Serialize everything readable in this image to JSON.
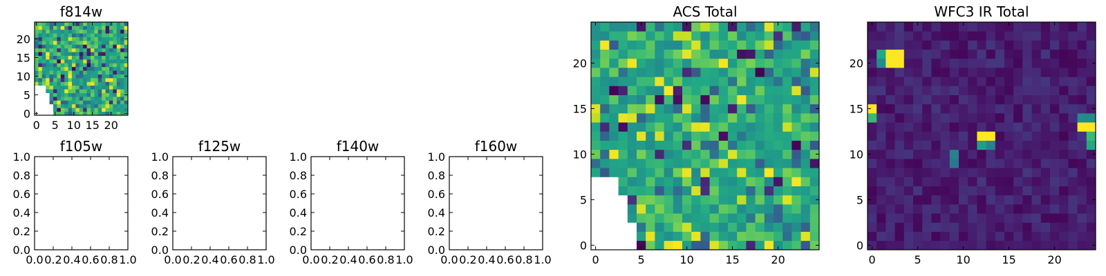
{
  "chart_data": [
    {
      "id": "f814w",
      "type": "heatmap",
      "title": "f814w",
      "xlabel": "",
      "ylabel": "",
      "xlim": [
        -0.5,
        24.5
      ],
      "ylim": [
        -0.5,
        24.5
      ],
      "xticks": [
        0,
        5,
        10,
        15,
        20
      ],
      "xtick_labels": [
        "0",
        "5",
        "10",
        "15",
        "20"
      ],
      "yticks": [
        0,
        5,
        10,
        15,
        20
      ],
      "ytick_labels": [
        "0",
        "5",
        "10",
        "15",
        "20"
      ],
      "grid": false,
      "colormap": "viridis",
      "value_range": [
        0,
        1
      ],
      "empty_region": "lower-left corner (no data)",
      "values": "25×25 pixel map (pixel-level detail not recoverable from the image)"
    },
    {
      "id": "f105w",
      "type": "scatter",
      "title": "f105w",
      "xlabel": "",
      "ylabel": "",
      "xlim": [
        0.0,
        1.0
      ],
      "ylim": [
        0.0,
        1.0
      ],
      "xticks": [
        0.0,
        0.2,
        0.4,
        0.6,
        0.8,
        1.0
      ],
      "xtick_labels": [
        "0.0",
        "0.2",
        "0.4",
        "0.6",
        "0.8",
        "1.0"
      ],
      "yticks": [
        0.0,
        0.2,
        0.4,
        0.6,
        0.8,
        1.0
      ],
      "ytick_labels": [
        "0.0",
        "0.2",
        "0.4",
        "0.6",
        "0.8",
        "1.0"
      ],
      "grid": false,
      "series": []
    },
    {
      "id": "f125w",
      "type": "scatter",
      "title": "f125w",
      "xlabel": "",
      "ylabel": "",
      "xlim": [
        0.0,
        1.0
      ],
      "ylim": [
        0.0,
        1.0
      ],
      "xticks": [
        0.0,
        0.2,
        0.4,
        0.6,
        0.8,
        1.0
      ],
      "xtick_labels": [
        "0.0",
        "0.2",
        "0.4",
        "0.6",
        "0.8",
        "1.0"
      ],
      "yticks": [
        0.0,
        0.2,
        0.4,
        0.6,
        0.8,
        1.0
      ],
      "ytick_labels": [
        "0.0",
        "0.2",
        "0.4",
        "0.6",
        "0.8",
        "1.0"
      ],
      "grid": false,
      "series": []
    },
    {
      "id": "f140w",
      "type": "scatter",
      "title": "f140w",
      "xlabel": "",
      "ylabel": "",
      "xlim": [
        0.0,
        1.0
      ],
      "ylim": [
        0.0,
        1.0
      ],
      "xticks": [
        0.0,
        0.2,
        0.4,
        0.6,
        0.8,
        1.0
      ],
      "xtick_labels": [
        "0.0",
        "0.2",
        "0.4",
        "0.6",
        "0.8",
        "1.0"
      ],
      "yticks": [
        0.0,
        0.2,
        0.4,
        0.6,
        0.8,
        1.0
      ],
      "ytick_labels": [
        "0.0",
        "0.2",
        "0.4",
        "0.6",
        "0.8",
        "1.0"
      ],
      "grid": false,
      "series": []
    },
    {
      "id": "f160w",
      "type": "scatter",
      "title": "f160w",
      "xlabel": "",
      "ylabel": "",
      "xlim": [
        0.0,
        1.0
      ],
      "ylim": [
        0.0,
        1.0
      ],
      "xticks": [
        0.0,
        0.2,
        0.4,
        0.6,
        0.8,
        1.0
      ],
      "xtick_labels": [
        "0.0",
        "0.2",
        "0.4",
        "0.6",
        "0.8",
        "1.0"
      ],
      "yticks": [
        0.0,
        0.2,
        0.4,
        0.6,
        0.8,
        1.0
      ],
      "ytick_labels": [
        "0.0",
        "0.2",
        "0.4",
        "0.6",
        "0.8",
        "1.0"
      ],
      "grid": false,
      "series": []
    },
    {
      "id": "acs_total",
      "type": "heatmap",
      "title": "ACS Total",
      "xlabel": "",
      "ylabel": "",
      "xlim": [
        -0.5,
        24.5
      ],
      "ylim": [
        -0.5,
        24.5
      ],
      "xticks": [
        0,
        5,
        10,
        15,
        20
      ],
      "xtick_labels": [
        "0",
        "5",
        "10",
        "15",
        "20"
      ],
      "yticks": [
        0,
        5,
        10,
        15,
        20
      ],
      "ytick_labels": [
        "0",
        "5",
        "10",
        "15",
        "20"
      ],
      "grid": false,
      "colormap": "viridis",
      "value_range": [
        0,
        1
      ],
      "empty_region": "lower-left corner (no data)",
      "values": "25×25 pixel map (pixel-level detail not recoverable from the image)"
    },
    {
      "id": "wfc3_ir_total",
      "type": "heatmap",
      "title": "WFC3 IR Total",
      "xlabel": "",
      "ylabel": "",
      "xlim": [
        -0.5,
        24.5
      ],
      "ylim": [
        -0.5,
        24.5
      ],
      "xticks": [
        0,
        5,
        10,
        15,
        20
      ],
      "xtick_labels": [
        "0",
        "5",
        "10",
        "15",
        "20"
      ],
      "yticks": [
        0,
        5,
        10,
        15,
        20
      ],
      "ytick_labels": [
        "0",
        "5",
        "10",
        "15",
        "20"
      ],
      "grid": false,
      "colormap": "viridis",
      "value_range": [
        0,
        1
      ],
      "values": "25×25 pixel map, mostly low (dark purple) with a few bright pixels (pixel-level detail not recoverable from the image)"
    }
  ],
  "colors": {
    "axis": "#000000",
    "background": "#ffffff",
    "viridis_low": "#440154",
    "viridis_mid": "#21918c",
    "viridis_high": "#fde725"
  }
}
